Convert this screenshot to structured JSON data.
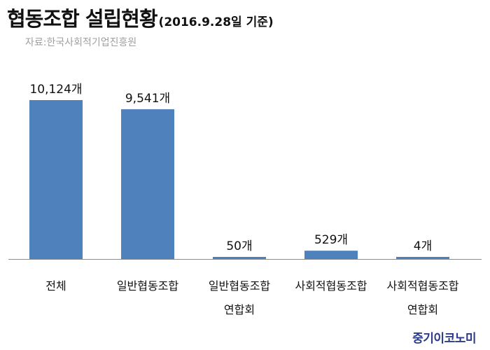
{
  "title": "협동조합 설립현황",
  "subtitle": "(2016.9.28일 기준)",
  "source": "자료:한국사회적기업진흥원",
  "brand": "중기이코노미",
  "colors": {
    "bar": "#4f81bd",
    "axis": "#8c8c8c",
    "text": "#111111",
    "source": "#a0a0a0",
    "brand": "#2a3a8c"
  },
  "chart_data": {
    "type": "bar",
    "title": "협동조합 설립현황",
    "subtitle": "(2016.9.28일 기준)",
    "categories": [
      [
        "전체"
      ],
      [
        "일반협동조합"
      ],
      [
        "일반협동조합",
        "연합회"
      ],
      [
        "사회적협동조합"
      ],
      [
        "사회적협동조합",
        "연합회"
      ]
    ],
    "values": [
      10124,
      9541,
      50,
      529,
      4
    ],
    "data_labels": [
      "10,124개",
      "9,541개",
      "50개",
      "529개",
      "4개"
    ],
    "xlabel": "",
    "ylabel": "",
    "ylim": [
      0,
      10124
    ],
    "grid": false,
    "legend": "none"
  }
}
